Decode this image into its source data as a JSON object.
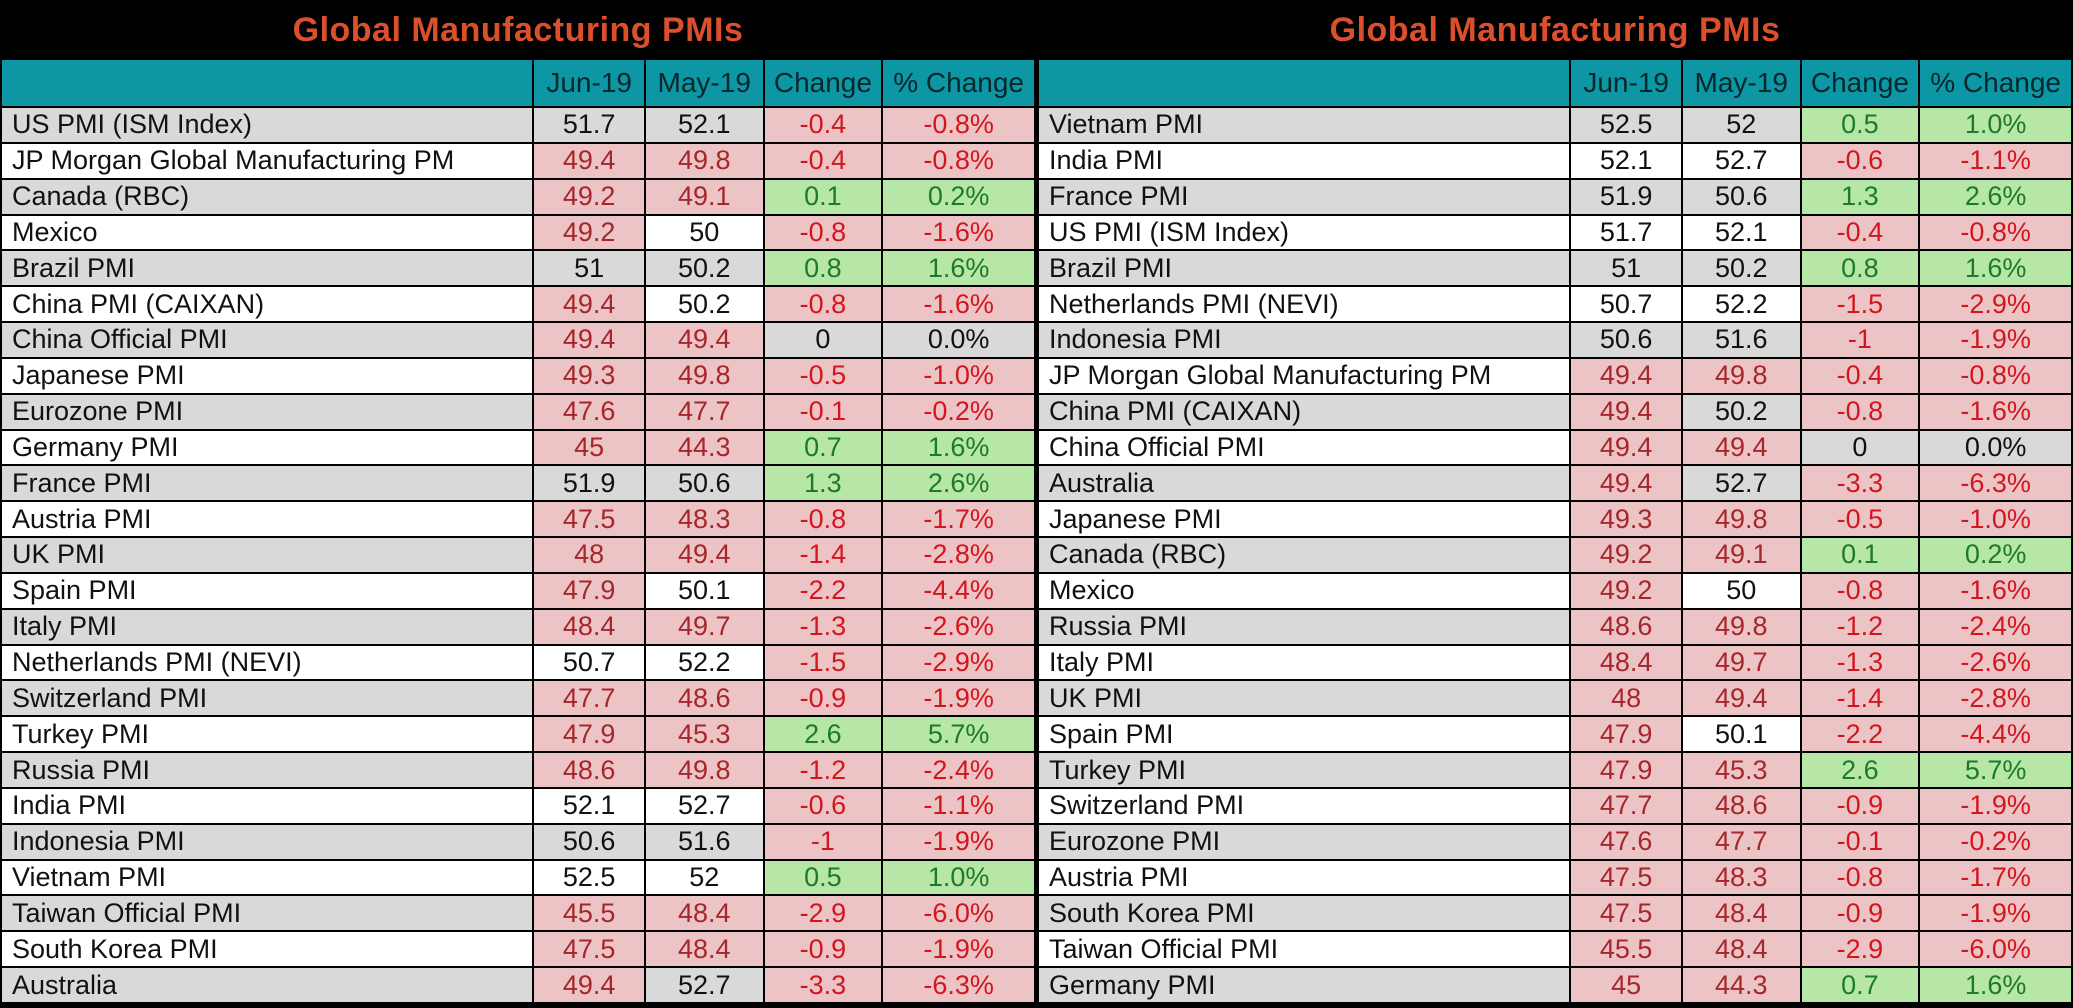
{
  "chart_data": [
    {
      "type": "table",
      "title": "Global Manufacturing PMIs",
      "columns": [
        "",
        "Jun-19",
        "May-19",
        "Change",
        "% Change"
      ],
      "rows": [
        [
          "US PMI (ISM Index)",
          "51.7",
          "52.1",
          "-0.4",
          "-0.8%"
        ],
        [
          "JP Morgan Global Manufacturing PM",
          "49.4",
          "49.8",
          "-0.4",
          "-0.8%"
        ],
        [
          "Canada (RBC)",
          "49.2",
          "49.1",
          "0.1",
          "0.2%"
        ],
        [
          "Mexico",
          "49.2",
          "50",
          "-0.8",
          "-1.6%"
        ],
        [
          "Brazil PMI",
          "51",
          "50.2",
          "0.8",
          "1.6%"
        ],
        [
          "China PMI (CAIXAN)",
          "49.4",
          "50.2",
          "-0.8",
          "-1.6%"
        ],
        [
          "China Official PMI",
          "49.4",
          "49.4",
          "0",
          "0.0%"
        ],
        [
          "Japanese PMI",
          "49.3",
          "49.8",
          "-0.5",
          "-1.0%"
        ],
        [
          "Eurozone PMI",
          "47.6",
          "47.7",
          "-0.1",
          "-0.2%"
        ],
        [
          "Germany PMI",
          "45",
          "44.3",
          "0.7",
          "1.6%"
        ],
        [
          "France PMI",
          "51.9",
          "50.6",
          "1.3",
          "2.6%"
        ],
        [
          "Austria PMI",
          "47.5",
          "48.3",
          "-0.8",
          "-1.7%"
        ],
        [
          "UK PMI",
          "48",
          "49.4",
          "-1.4",
          "-2.8%"
        ],
        [
          "Spain PMI",
          "47.9",
          "50.1",
          "-2.2",
          "-4.4%"
        ],
        [
          "Italy PMI",
          "48.4",
          "49.7",
          "-1.3",
          "-2.6%"
        ],
        [
          "Netherlands PMI (NEVI)",
          "50.7",
          "52.2",
          "-1.5",
          "-2.9%"
        ],
        [
          "Switzerland PMI",
          "47.7",
          "48.6",
          "-0.9",
          "-1.9%"
        ],
        [
          "Turkey PMI",
          "47.9",
          "45.3",
          "2.6",
          "5.7%"
        ],
        [
          "Russia PMI",
          "48.6",
          "49.8",
          "-1.2",
          "-2.4%"
        ],
        [
          "India PMI",
          "52.1",
          "52.7",
          "-0.6",
          "-1.1%"
        ],
        [
          "Indonesia PMI",
          "50.6",
          "51.6",
          "-1",
          "-1.9%"
        ],
        [
          "Vietnam PMI",
          "52.5",
          "52",
          "0.5",
          "1.0%"
        ],
        [
          "Taiwan Official PMI",
          "45.5",
          "48.4",
          "-2.9",
          "-6.0%"
        ],
        [
          "South Korea PMI",
          "47.5",
          "48.4",
          "-0.9",
          "-1.9%"
        ],
        [
          "Australia",
          "49.4",
          "52.7",
          "-3.3",
          "-6.3%"
        ]
      ]
    },
    {
      "type": "table",
      "title": "Global Manufacturing PMIs",
      "columns": [
        "",
        "Jun-19",
        "May-19",
        "Change",
        "% Change"
      ],
      "rows": [
        [
          "Vietnam PMI",
          "52.5",
          "52",
          "0.5",
          "1.0%"
        ],
        [
          "India PMI",
          "52.1",
          "52.7",
          "-0.6",
          "-1.1%"
        ],
        [
          "France PMI",
          "51.9",
          "50.6",
          "1.3",
          "2.6%"
        ],
        [
          "US PMI (ISM Index)",
          "51.7",
          "52.1",
          "-0.4",
          "-0.8%"
        ],
        [
          "Brazil PMI",
          "51",
          "50.2",
          "0.8",
          "1.6%"
        ],
        [
          "Netherlands PMI (NEVI)",
          "50.7",
          "52.2",
          "-1.5",
          "-2.9%"
        ],
        [
          "Indonesia PMI",
          "50.6",
          "51.6",
          "-1",
          "-1.9%"
        ],
        [
          "JP Morgan Global Manufacturing PM",
          "49.4",
          "49.8",
          "-0.4",
          "-0.8%"
        ],
        [
          "China PMI (CAIXAN)",
          "49.4",
          "50.2",
          "-0.8",
          "-1.6%"
        ],
        [
          "China Official PMI",
          "49.4",
          "49.4",
          "0",
          "0.0%"
        ],
        [
          "Australia",
          "49.4",
          "52.7",
          "-3.3",
          "-6.3%"
        ],
        [
          "Japanese PMI",
          "49.3",
          "49.8",
          "-0.5",
          "-1.0%"
        ],
        [
          "Canada (RBC)",
          "49.2",
          "49.1",
          "0.1",
          "0.2%"
        ],
        [
          "Mexico",
          "49.2",
          "50",
          "-0.8",
          "-1.6%"
        ],
        [
          "Russia PMI",
          "48.6",
          "49.8",
          "-1.2",
          "-2.4%"
        ],
        [
          "Italy PMI",
          "48.4",
          "49.7",
          "-1.3",
          "-2.6%"
        ],
        [
          "UK PMI",
          "48",
          "49.4",
          "-1.4",
          "-2.8%"
        ],
        [
          "Spain PMI",
          "47.9",
          "50.1",
          "-2.2",
          "-4.4%"
        ],
        [
          "Turkey PMI",
          "47.9",
          "45.3",
          "2.6",
          "5.7%"
        ],
        [
          "Switzerland PMI",
          "47.7",
          "48.6",
          "-0.9",
          "-1.9%"
        ],
        [
          "Eurozone PMI",
          "47.6",
          "47.7",
          "-0.1",
          "-0.2%"
        ],
        [
          "Austria PMI",
          "47.5",
          "48.3",
          "-0.8",
          "-1.7%"
        ],
        [
          "South Korea PMI",
          "47.5",
          "48.4",
          "-0.9",
          "-1.9%"
        ],
        [
          "Taiwan Official PMI",
          "45.5",
          "48.4",
          "-2.9",
          "-6.0%"
        ],
        [
          "Germany PMI",
          "45",
          "44.3",
          "0.7",
          "1.6%"
        ]
      ]
    }
  ],
  "formatting_rules": {
    "value_below_50": "pink background, dark red text",
    "change_negative": "pink background, red text",
    "change_positive": "green background, dark green text",
    "change_zero": "gray background, black text"
  },
  "colors": {
    "title_text": "#dc4f2d",
    "title_bar_bg": "#000000",
    "header_bg": "#0d96a4",
    "row_alt_bg": "#d9d9d9",
    "row_bg": "#ffffff",
    "below_50_bg": "#edc4c6",
    "below_50_text": "#a6262b",
    "negative_bg": "#edc4c6",
    "negative_text": "#d2161e",
    "positive_bg": "#b6e7a6",
    "positive_text": "#1e7a28",
    "zero_bg": "#d9d9d9",
    "text": "#111111",
    "border": "#000000"
  }
}
